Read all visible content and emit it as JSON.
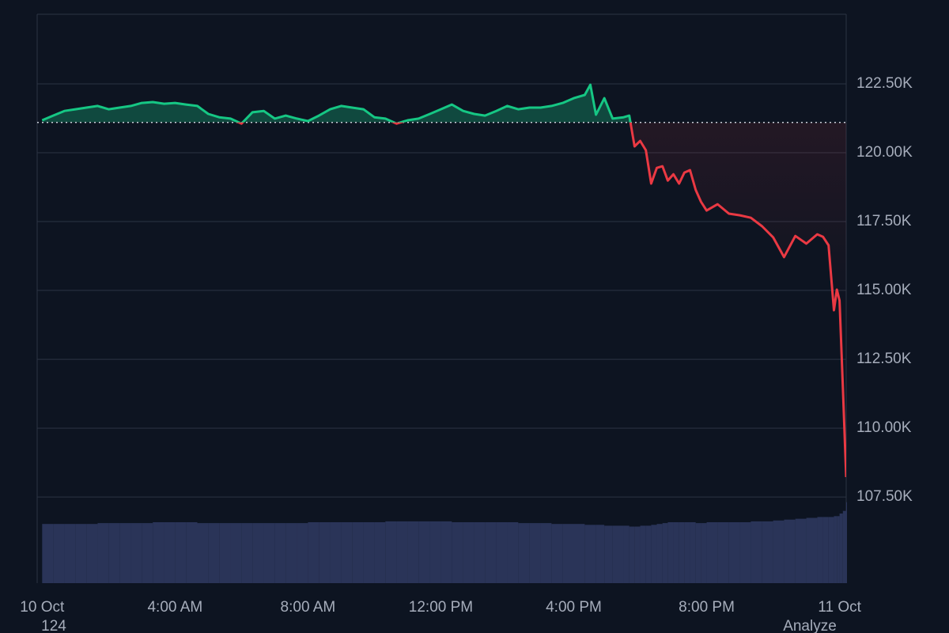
{
  "chart_data": {
    "type": "line",
    "x": [
      0,
      0.33,
      0.67,
      1,
      1.33,
      1.67,
      2,
      2.33,
      2.67,
      3,
      3.33,
      3.67,
      4,
      4.33,
      4.67,
      5,
      5.33,
      5.67,
      6,
      6.33,
      6.67,
      7,
      7.33,
      7.67,
      8,
      8.33,
      8.67,
      9,
      9.33,
      9.67,
      10,
      10.33,
      10.67,
      11,
      11.33,
      11.67,
      12,
      12.33,
      12.67,
      13,
      13.33,
      13.67,
      14,
      14.33,
      14.67,
      15,
      15.33,
      15.67,
      16,
      16.33,
      16.5,
      16.67,
      16.92,
      17.17,
      17.5,
      17.67,
      17.83,
      18,
      18.17,
      18.33,
      18.5,
      18.67,
      18.83,
      19,
      19.17,
      19.33,
      19.5,
      19.67,
      19.83,
      20,
      20.33,
      20.67,
      21,
      21.33,
      21.67,
      22,
      22.33,
      22.67,
      23,
      23.33,
      23.5,
      23.67,
      23.83,
      23.92,
      24,
      24.1,
      24.2
    ],
    "values": [
      121180,
      121350,
      121520,
      121580,
      121640,
      121700,
      121580,
      121640,
      121700,
      121810,
      121840,
      121780,
      121810,
      121750,
      121700,
      121410,
      121290,
      121240,
      121060,
      121470,
      121520,
      121240,
      121350,
      121240,
      121150,
      121350,
      121580,
      121700,
      121640,
      121580,
      121290,
      121240,
      121060,
      121180,
      121240,
      121410,
      121580,
      121750,
      121520,
      121410,
      121350,
      121520,
      121700,
      121580,
      121640,
      121640,
      121700,
      121810,
      121980,
      122100,
      122470,
      121380,
      121980,
      121240,
      121290,
      121350,
      120230,
      120430,
      120090,
      118880,
      119450,
      119510,
      118990,
      119220,
      118880,
      119280,
      119370,
      118650,
      118220,
      117900,
      118130,
      117790,
      117730,
      117640,
      117330,
      116930,
      116210,
      116980,
      116700,
      117040,
      116950,
      116640,
      114280,
      115030,
      114630,
      111470,
      108220
    ],
    "volume": [
      68,
      68,
      68,
      68,
      68,
      69,
      69,
      69,
      69,
      69,
      70,
      70,
      70,
      70,
      69,
      69,
      69,
      69,
      69,
      69,
      69,
      69,
      69,
      69,
      70,
      70,
      70,
      70,
      70,
      70,
      70,
      71,
      71,
      71,
      71,
      71,
      71,
      70,
      70,
      70,
      70,
      70,
      70,
      69,
      69,
      69,
      68,
      68,
      68,
      67,
      67,
      67,
      66,
      66,
      66,
      65,
      65,
      66,
      66,
      67,
      68,
      69,
      70,
      70,
      70,
      70,
      70,
      69,
      69,
      70,
      70,
      70,
      70,
      71,
      71,
      72,
      73,
      74,
      75,
      76,
      76,
      76,
      77,
      77,
      80,
      83,
      93
    ],
    "baseline": 121100,
    "xlim": [
      -0.15,
      24.2
    ],
    "ylim": [
      104370,
      125030
    ],
    "volume_ylim": [
      0,
      100
    ],
    "xticks": [
      {
        "value": 0,
        "label": "10 Oct"
      },
      {
        "value": 4,
        "label": "4:00 AM"
      },
      {
        "value": 8,
        "label": "8:00 AM"
      },
      {
        "value": 12,
        "label": "12:00 PM"
      },
      {
        "value": 16,
        "label": "4:00 PM"
      },
      {
        "value": 20,
        "label": "8:00 PM"
      },
      {
        "value": 24,
        "label": "11 Oct"
      }
    ],
    "yticks": [
      {
        "value": 107500,
        "label": "107.50K"
      },
      {
        "value": 110000,
        "label": "110.00K"
      },
      {
        "value": 112500,
        "label": "112.50K"
      },
      {
        "value": 115000,
        "label": "115.00K"
      },
      {
        "value": 117500,
        "label": "117.50K"
      },
      {
        "value": 120000,
        "label": "120.00K"
      },
      {
        "value": 122500,
        "label": "122.50K"
      }
    ],
    "grid": true,
    "up_color": "#16c784",
    "down_color": "#ea3943",
    "volume_color": "#2a3458",
    "footer_left": "124",
    "footer_right": "Analyze"
  }
}
